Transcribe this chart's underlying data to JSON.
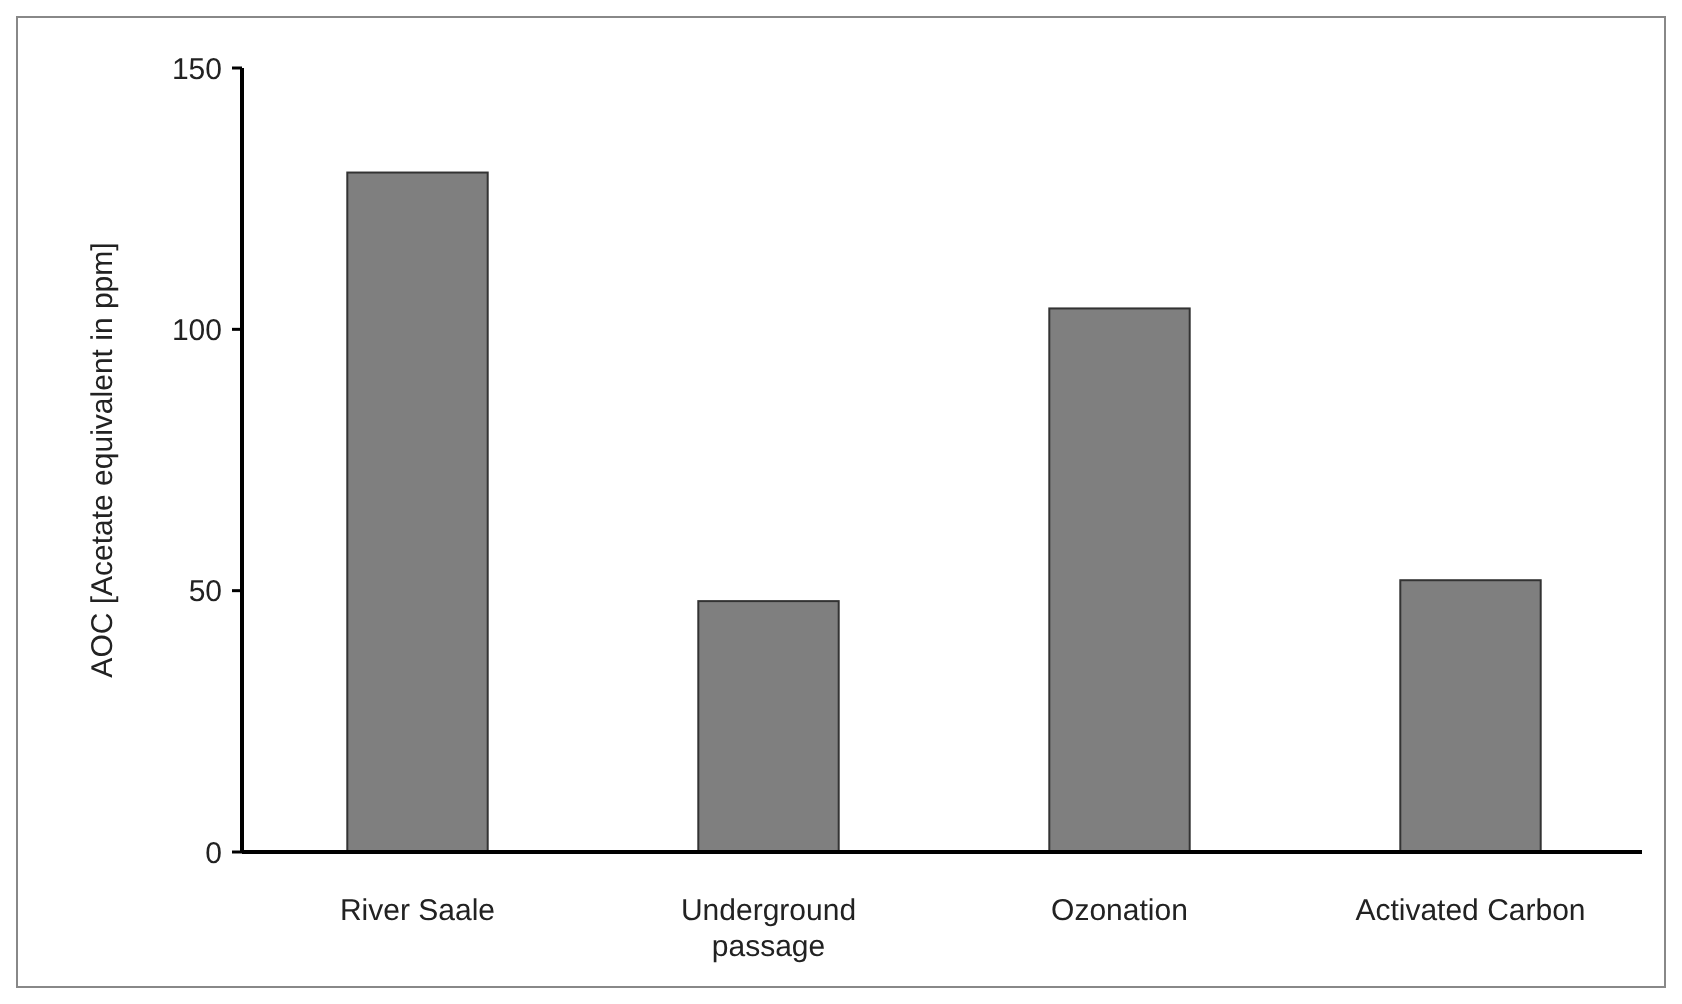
{
  "chart_data": {
    "type": "bar",
    "ylabel": "AOC [Acetate equivalent in ppm]",
    "categories": [
      "River Saale",
      "Underground passage",
      "Ozonation",
      "Activated Carbon"
    ],
    "values": [
      130,
      48,
      104,
      52
    ],
    "color": "#7f7f7f",
    "ylim": [
      0,
      150
    ],
    "yticks": [
      0,
      50,
      100,
      150
    ],
    "grid": false
  }
}
